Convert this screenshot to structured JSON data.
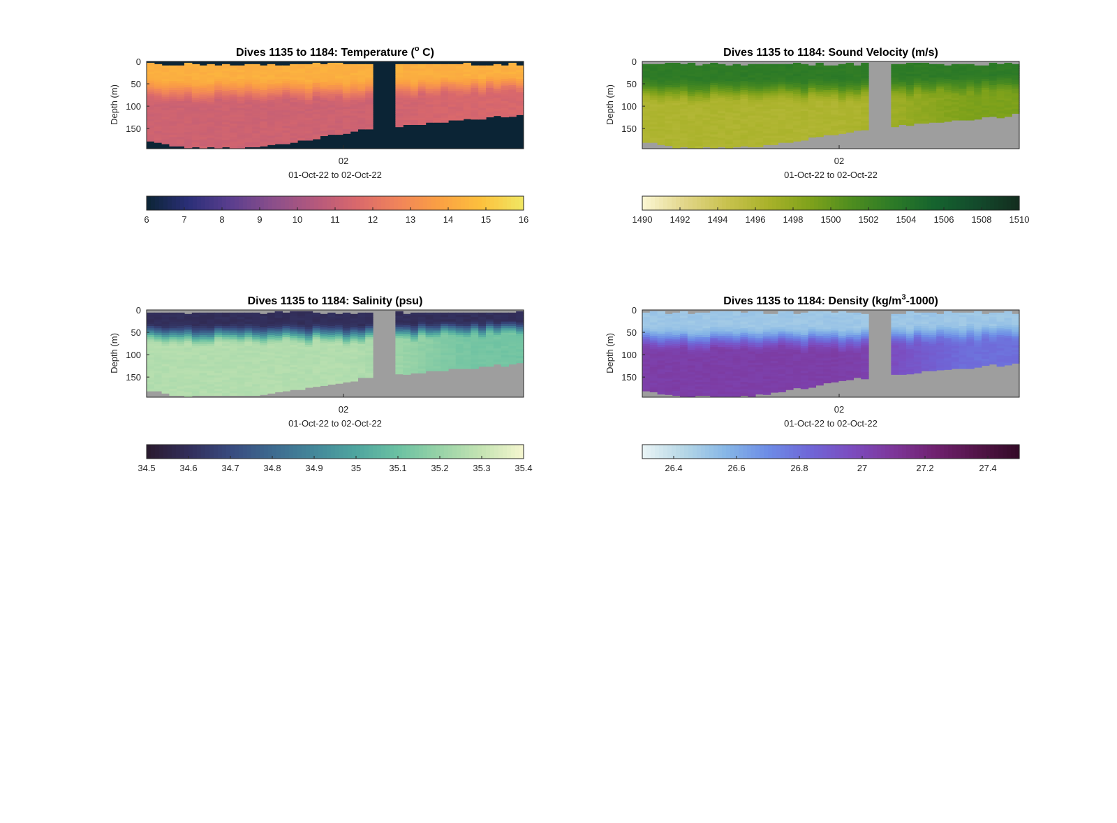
{
  "figure": {
    "background": "#ffffff",
    "nodata_color_dark": "#0b2435",
    "nodata_color_gray": "#9e9e9e"
  },
  "chart_data": [
    {
      "type": "heatmap",
      "variable": "temperature",
      "title": "Dives 1135 to 1184: Temperature (",
      "title_sup": "o",
      "title_end": " C)",
      "xlabel": "01-Oct-22 to 02-Oct-22",
      "ylabel": "Depth (m)",
      "xticks": [
        "02"
      ],
      "yticks": [
        "0",
        "50",
        "100",
        "150"
      ],
      "ylim": [
        0,
        195
      ],
      "dives": 50,
      "gap_dives": [
        30,
        31,
        32
      ],
      "nodata_color": "#0b2435",
      "colorbar": {
        "min": 6,
        "max": 16,
        "ticks": [
          "6",
          "7",
          "8",
          "9",
          "10",
          "11",
          "12",
          "13",
          "14",
          "15",
          "16"
        ],
        "colors": [
          "#0b2435",
          "#2b2f78",
          "#5a3e8e",
          "#8a4e8b",
          "#b3587d",
          "#d9686c",
          "#f0845a",
          "#fba043",
          "#fcc13d",
          "#f0e763"
        ]
      },
      "profile": {
        "surface_value": 14.3,
        "mixed_depth": 55,
        "deep_value": 11.2,
        "deep_offshore_value": 11.5
      }
    },
    {
      "type": "heatmap",
      "variable": "sound_velocity",
      "title": "Dives 1135 to 1184: Sound Velocity (m/s)",
      "xlabel": "01-Oct-22 to 02-Oct-22",
      "ylabel": "Depth (m)",
      "xticks": [
        "02"
      ],
      "yticks": [
        "0",
        "50",
        "100",
        "150"
      ],
      "ylim": [
        0,
        195
      ],
      "dives": 50,
      "gap_dives": [
        30,
        31,
        32
      ],
      "nodata_color": "#9e9e9e",
      "colorbar": {
        "min": 1490,
        "max": 1510,
        "ticks": [
          "1490",
          "1492",
          "1494",
          "1496",
          "1498",
          "1500",
          "1502",
          "1504",
          "1506",
          "1508",
          "1510"
        ],
        "colors": [
          "#fbf7d4",
          "#e2d68a",
          "#c9c24f",
          "#a9b22a",
          "#7fa21b",
          "#4e8d1f",
          "#2c7a27",
          "#15632e",
          "#134a2c",
          "#132d1e"
        ]
      },
      "profile": {
        "surface_value": 1503.2,
        "mixed_depth": 55,
        "deep_value": 1496.3,
        "deep_offshore_value": 1499.0
      }
    },
    {
      "type": "heatmap",
      "variable": "salinity",
      "title": "Dives 1135 to 1184: Salinity (psu)",
      "xlabel": "01-Oct-22 to 02-Oct-22",
      "ylabel": "Depth (m)",
      "xticks": [
        "02"
      ],
      "yticks": [
        "0",
        "50",
        "100",
        "150"
      ],
      "ylim": [
        0,
        195
      ],
      "dives": 50,
      "gap_dives": [
        30,
        31,
        32
      ],
      "nodata_color": "#9e9e9e",
      "colorbar": {
        "min": 34.5,
        "max": 35.4,
        "ticks": [
          "34.5",
          "34.6",
          "34.7",
          "34.8",
          "34.9",
          "35",
          "35.1",
          "35.2",
          "35.3",
          "35.4"
        ],
        "colors": [
          "#2a1a2e",
          "#322e5a",
          "#384a7f",
          "#3d6a8f",
          "#43879a",
          "#4fa59f",
          "#6bc1a2",
          "#98d3a7",
          "#c5e4b3",
          "#f5f6cf"
        ]
      },
      "profile": {
        "surface_value": 34.6,
        "mixed_depth": 45,
        "deep_value": 35.26,
        "deep_offshore_value": 35.12
      }
    },
    {
      "type": "heatmap",
      "variable": "density",
      "title": "Dives 1135 to 1184: Density (kg/m",
      "title_sup": "3",
      "title_end": "-1000)",
      "xlabel": "01-Oct-22 to 02-Oct-22",
      "ylabel": "Depth (m)",
      "xticks": [
        "02"
      ],
      "yticks": [
        "0",
        "50",
        "100",
        "150"
      ],
      "ylim": [
        0,
        195
      ],
      "dives": 50,
      "gap_dives": [
        30,
        31,
        32
      ],
      "nodata_color": "#9e9e9e",
      "colorbar": {
        "min": 26.3,
        "max": 27.5,
        "ticks": [
          "26.4",
          "26.6",
          "26.8",
          "27",
          "27.2",
          "27.4"
        ],
        "colors": [
          "#eaf4f6",
          "#b5d7e6",
          "#86b6e6",
          "#6d8ce6",
          "#6f66d7",
          "#7c4cbf",
          "#7d3699",
          "#6f216f",
          "#531448",
          "#330b27"
        ]
      },
      "profile": {
        "surface_value": 26.5,
        "mixed_depth": 55,
        "deep_value": 27.05,
        "deep_offshore_value": 26.8
      }
    }
  ]
}
